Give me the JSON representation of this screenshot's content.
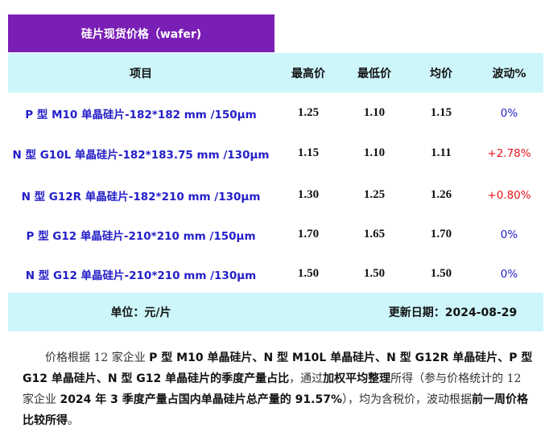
{
  "header": {
    "title": "硅片现货价格（wafer)"
  },
  "table": {
    "columns": [
      "项目",
      "最高价",
      "最低价",
      "均价",
      "波动%"
    ],
    "rows": [
      [
        "P 型 M10 单晶硅片-182*182 mm /150μm",
        "1.25",
        "1.10",
        "1.15",
        "0%"
      ],
      [
        "N 型 G10L 单晶硅片-182*183.75 mm /130μm",
        "1.15",
        "1.10",
        "1.11",
        "+2.78%"
      ],
      [
        "N 型 G12R 单晶硅片-182*210 mm /130μm",
        "1.30",
        "1.25",
        "1.26",
        "+0.80%"
      ],
      [
        "P 型 G12 单晶硅片-210*210 mm /150μm",
        "1.70",
        "1.65",
        "1.70",
        "0%"
      ],
      [
        "N 型 G12 单晶硅片-210*210 mm /130μm",
        "1.50",
        "1.50",
        "1.50",
        "0%"
      ]
    ],
    "footer": {
      "unit": "单位：元/片",
      "date": "更新日期：2024-08-29"
    }
  },
  "note": {
    "runs": [
      {
        "text": "价格根据 12 家企业 ",
        "bold": false
      },
      {
        "text": "P 型 M10 单晶硅片、N 型 M10L 单晶硅片、N 型 G12R 单晶硅片、P 型 G12 单晶硅片、N 型 G12 单晶硅片的季度产量占比",
        "bold": true
      },
      {
        "text": "，通过",
        "bold": false
      },
      {
        "text": "加权平均整理",
        "bold": true
      },
      {
        "text": "所得（参与价格统计的 12 家企业 ",
        "bold": false
      },
      {
        "text": "2024 年 3 季度产量占国内单晶硅片总产量的 91.57%",
        "bold": true
      },
      {
        "text": "），均为含税价，波动根据",
        "bold": false
      },
      {
        "text": "前一周价格比较所得",
        "bold": true
      },
      {
        "text": "。",
        "bold": false
      }
    ]
  }
}
